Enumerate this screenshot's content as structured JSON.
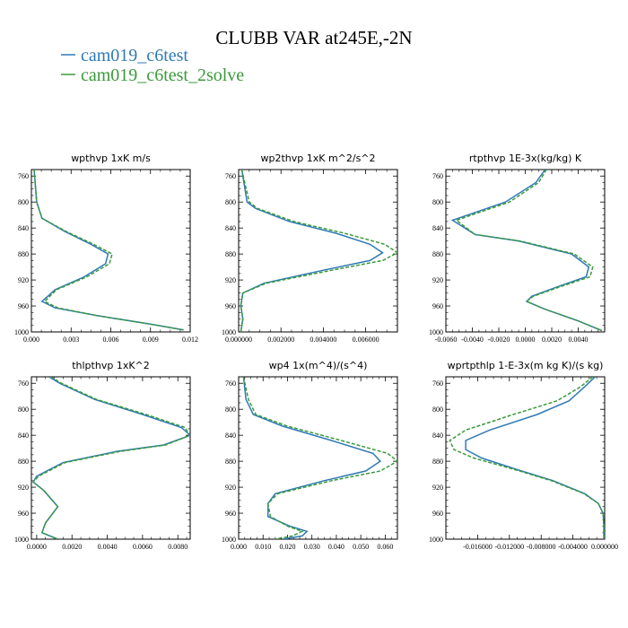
{
  "title": "CLUBB VAR at245E,-2N",
  "legend": [
    {
      "label": "cam019_c6test",
      "color": "#2f7ab5"
    },
    {
      "label": "cam019_c6test_2solve",
      "color": "#3a9a3a"
    }
  ],
  "chart_data": [
    {
      "type": "line",
      "title": "wpthvp  1xK m/s",
      "xlim": [
        0,
        0.012
      ],
      "ylim": [
        1000,
        750
      ],
      "xticks": [
        0.0,
        0.003,
        0.006,
        0.009,
        0.012
      ],
      "xticklabels": [
        "0.000",
        "0.003",
        "0.006",
        "0.009",
        "0.012"
      ],
      "yticks": [
        760,
        800,
        840,
        880,
        920,
        960,
        1000
      ],
      "series": [
        {
          "name": "cam019_c6test",
          "values": [
            [
              0.0002,
              750
            ],
            [
              0.0004,
              800
            ],
            [
              0.0008,
              825
            ],
            [
              0.0025,
              845
            ],
            [
              0.0045,
              865
            ],
            [
              0.0058,
              880
            ],
            [
              0.0056,
              895
            ],
            [
              0.004,
              915
            ],
            [
              0.0018,
              935
            ],
            [
              0.0008,
              953
            ],
            [
              0.0018,
              963
            ],
            [
              0.005,
              975
            ],
            [
              0.009,
              988
            ],
            [
              0.0115,
              997
            ]
          ]
        },
        {
          "name": "cam019_c6test_2solve",
          "values": [
            [
              0.0002,
              750
            ],
            [
              0.0004,
              800
            ],
            [
              0.0008,
              825
            ],
            [
              0.0026,
              845
            ],
            [
              0.0047,
              865
            ],
            [
              0.0061,
              880
            ],
            [
              0.0059,
              895
            ],
            [
              0.0042,
              915
            ],
            [
              0.0019,
              935
            ],
            [
              0.001,
              953
            ],
            [
              0.002,
              963
            ],
            [
              0.005,
              975
            ],
            [
              0.009,
              988
            ],
            [
              0.0115,
              997
            ]
          ]
        }
      ]
    },
    {
      "type": "line",
      "title": "wp2thvp  1xK m^2/s^2",
      "xlim": [
        0,
        0.0075
      ],
      "ylim": [
        1000,
        750
      ],
      "xticks": [
        0.0,
        0.002,
        0.004,
        0.006
      ],
      "xticklabels": [
        "0.000000",
        "0.002000",
        "0.004000",
        "0.006000"
      ],
      "yticks": [
        760,
        800,
        840,
        880,
        920,
        960,
        1000
      ],
      "series": [
        {
          "name": "cam019_c6test",
          "values": [
            [
              0.00015,
              750
            ],
            [
              0.0004,
              800
            ],
            [
              0.0008,
              810
            ],
            [
              0.0024,
              830
            ],
            [
              0.0046,
              848
            ],
            [
              0.0062,
              865
            ],
            [
              0.0068,
              878
            ],
            [
              0.0062,
              890
            ],
            [
              0.004,
              905
            ],
            [
              0.0012,
              925
            ],
            [
              0.0002,
              940
            ],
            [
              0.0001,
              960
            ],
            [
              0.0002,
              980
            ],
            [
              0.0001,
              1000
            ]
          ]
        },
        {
          "name": "cam019_c6test_2solve",
          "values": [
            [
              0.00015,
              750
            ],
            [
              0.0005,
              800
            ],
            [
              0.0009,
              810
            ],
            [
              0.0026,
              830
            ],
            [
              0.005,
              848
            ],
            [
              0.0069,
              865
            ],
            [
              0.0075,
              878
            ],
            [
              0.0068,
              890
            ],
            [
              0.0044,
              905
            ],
            [
              0.0013,
              925
            ],
            [
              0.0002,
              940
            ],
            [
              0.0001,
              960
            ],
            [
              0.0002,
              980
            ],
            [
              0.0001,
              1000
            ]
          ]
        }
      ]
    },
    {
      "type": "line",
      "title": "rtpthvp  1E-3x(kg/kg) K",
      "xlim": [
        -0.006,
        0.006
      ],
      "ylim": [
        1000,
        750
      ],
      "xticks": [
        -0.006,
        -0.004,
        -0.002,
        0.0,
        0.002,
        0.004
      ],
      "xticklabels": [
        "-0.0060",
        "-0.0040",
        "-0.0020",
        "0.0000",
        "0.0020",
        "0.0040"
      ],
      "yticks": [
        760,
        800,
        840,
        880,
        920,
        960,
        1000
      ],
      "series": [
        {
          "name": "cam019_c6test",
          "values": [
            [
              0.0015,
              750
            ],
            [
              0.0008,
              770
            ],
            [
              -0.0015,
              800
            ],
            [
              -0.0055,
              828
            ],
            [
              -0.0038,
              850
            ],
            [
              -0.0005,
              860
            ],
            [
              0.0035,
              880
            ],
            [
              0.0048,
              900
            ],
            [
              0.0046,
              915
            ],
            [
              0.0025,
              930
            ],
            [
              0.0005,
              945
            ],
            [
              0.0001,
              953
            ],
            [
              0.0015,
              965
            ],
            [
              0.004,
              983
            ],
            [
              0.0058,
              998
            ]
          ]
        },
        {
          "name": "cam019_c6test_2solve",
          "values": [
            [
              0.0016,
              750
            ],
            [
              0.001,
              770
            ],
            [
              -0.0012,
              800
            ],
            [
              -0.0052,
              828
            ],
            [
              -0.0038,
              850
            ],
            [
              -0.0004,
              860
            ],
            [
              0.0037,
              880
            ],
            [
              0.0051,
              900
            ],
            [
              0.0049,
              915
            ],
            [
              0.0027,
              930
            ],
            [
              0.0006,
              945
            ],
            [
              0.0001,
              953
            ],
            [
              0.0015,
              965
            ],
            [
              0.004,
              983
            ],
            [
              0.0058,
              998
            ]
          ]
        }
      ]
    },
    {
      "type": "line",
      "title": "thlpthvp  1xK^2",
      "xlim": [
        -0.0003,
        0.0087
      ],
      "ylim": [
        1000,
        750
      ],
      "xticks": [
        0.0,
        0.002,
        0.004,
        0.006,
        0.008
      ],
      "xticklabels": [
        "0.0000",
        "0.0020",
        "0.0040",
        "0.0060",
        "0.0080"
      ],
      "yticks": [
        760,
        800,
        840,
        880,
        920,
        960,
        1000
      ],
      "series": [
        {
          "name": "cam019_c6test",
          "values": [
            [
              0.0007,
              750
            ],
            [
              0.0013,
              760
            ],
            [
              0.0033,
              785
            ],
            [
              0.006,
              808
            ],
            [
              0.0082,
              828
            ],
            [
              0.0087,
              840
            ],
            [
              0.0072,
              855
            ],
            [
              0.0045,
              865
            ],
            [
              0.0015,
              882
            ],
            [
              0.0,
              903
            ],
            [
              -0.0002,
              912
            ],
            [
              0.0004,
              925
            ],
            [
              0.0012,
              950
            ],
            [
              0.0005,
              975
            ],
            [
              0.0003,
              990
            ],
            [
              0.0012,
              1000
            ]
          ]
        },
        {
          "name": "cam019_c6test_2solve",
          "values": [
            [
              0.0008,
              750
            ],
            [
              0.0014,
              760
            ],
            [
              0.0034,
              785
            ],
            [
              0.0062,
              808
            ],
            [
              0.0084,
              828
            ],
            [
              0.0087,
              840
            ],
            [
              0.0073,
              855
            ],
            [
              0.0047,
              865
            ],
            [
              0.0016,
              882
            ],
            [
              0.0001,
              903
            ],
            [
              -0.0002,
              912
            ],
            [
              0.0004,
              925
            ],
            [
              0.0012,
              950
            ],
            [
              0.0005,
              975
            ],
            [
              0.0003,
              990
            ],
            [
              0.0012,
              1000
            ]
          ]
        }
      ]
    },
    {
      "type": "line",
      "title": "wp4  1x(m^4)/(s^4)",
      "xlim": [
        0,
        0.065
      ],
      "ylim": [
        1000,
        750
      ],
      "xticks": [
        0.0,
        0.01,
        0.02,
        0.03,
        0.04,
        0.05,
        0.06
      ],
      "xticklabels": [
        "0.000",
        "0.010",
        "0.020",
        "0.030",
        "0.040",
        "0.050",
        "0.060"
      ],
      "yticks": [
        760,
        800,
        840,
        880,
        920,
        960,
        1000
      ],
      "series": [
        {
          "name": "cam019_c6test",
          "values": [
            [
              0.002,
              750
            ],
            [
              0.003,
              785
            ],
            [
              0.006,
              808
            ],
            [
              0.018,
              826
            ],
            [
              0.038,
              848
            ],
            [
              0.055,
              868
            ],
            [
              0.058,
              880
            ],
            [
              0.052,
              895
            ],
            [
              0.035,
              910
            ],
            [
              0.015,
              930
            ],
            [
              0.012,
              945
            ],
            [
              0.012,
              965
            ],
            [
              0.021,
              980
            ],
            [
              0.028,
              988
            ],
            [
              0.026,
              995
            ],
            [
              0.018,
              1000
            ]
          ]
        },
        {
          "name": "cam019_c6test_2solve",
          "values": [
            [
              0.002,
              750
            ],
            [
              0.004,
              785
            ],
            [
              0.007,
              808
            ],
            [
              0.02,
              826
            ],
            [
              0.042,
              848
            ],
            [
              0.061,
              868
            ],
            [
              0.065,
              880
            ],
            [
              0.058,
              895
            ],
            [
              0.038,
              910
            ],
            [
              0.016,
              930
            ],
            [
              0.012,
              945
            ],
            [
              0.013,
              965
            ],
            [
              0.02,
              980
            ],
            [
              0.026,
              988
            ],
            [
              0.022,
              995
            ],
            [
              0.015,
              1000
            ]
          ]
        }
      ]
    },
    {
      "type": "line",
      "title": "wprtpthlp  1-E-3x(m kg K)/(s kg)",
      "xlim": [
        -0.02,
        0.0
      ],
      "ylim": [
        1000,
        750
      ],
      "xticks": [
        -0.016,
        -0.012,
        -0.008,
        -0.004,
        0.0
      ],
      "xticklabels": [
        "-0.016000",
        "-0.012000",
        "-0.008000",
        "-0.004000",
        "0.000000"
      ],
      "yticks": [
        760,
        800,
        840,
        880,
        920,
        960,
        1000
      ],
      "series": [
        {
          "name": "cam019_c6test",
          "values": [
            [
              -0.0012,
              750
            ],
            [
              -0.0025,
              765
            ],
            [
              -0.0045,
              787
            ],
            [
              -0.0085,
              808
            ],
            [
              -0.0145,
              832
            ],
            [
              -0.0175,
              848
            ],
            [
              -0.0175,
              862
            ],
            [
              -0.0155,
              875
            ],
            [
              -0.011,
              893
            ],
            [
              -0.0065,
              910
            ],
            [
              -0.0025,
              930
            ],
            [
              -0.0008,
              945
            ],
            [
              -0.0002,
              960
            ],
            [
              -0.0001,
              980
            ],
            [
              -0.0001,
              1000
            ]
          ]
        },
        {
          "name": "cam019_c6test_2solve",
          "values": [
            [
              -0.0015,
              750
            ],
            [
              -0.003,
              765
            ],
            [
              -0.006,
              787
            ],
            [
              -0.0115,
              808
            ],
            [
              -0.0175,
              832
            ],
            [
              -0.0195,
              848
            ],
            [
              -0.019,
              862
            ],
            [
              -0.0165,
              875
            ],
            [
              -0.0113,
              893
            ],
            [
              -0.0067,
              910
            ],
            [
              -0.0026,
              930
            ],
            [
              -0.0008,
              945
            ],
            [
              -0.0002,
              960
            ],
            [
              -0.0001,
              980
            ],
            [
              -0.0001,
              1000
            ]
          ]
        }
      ]
    }
  ]
}
